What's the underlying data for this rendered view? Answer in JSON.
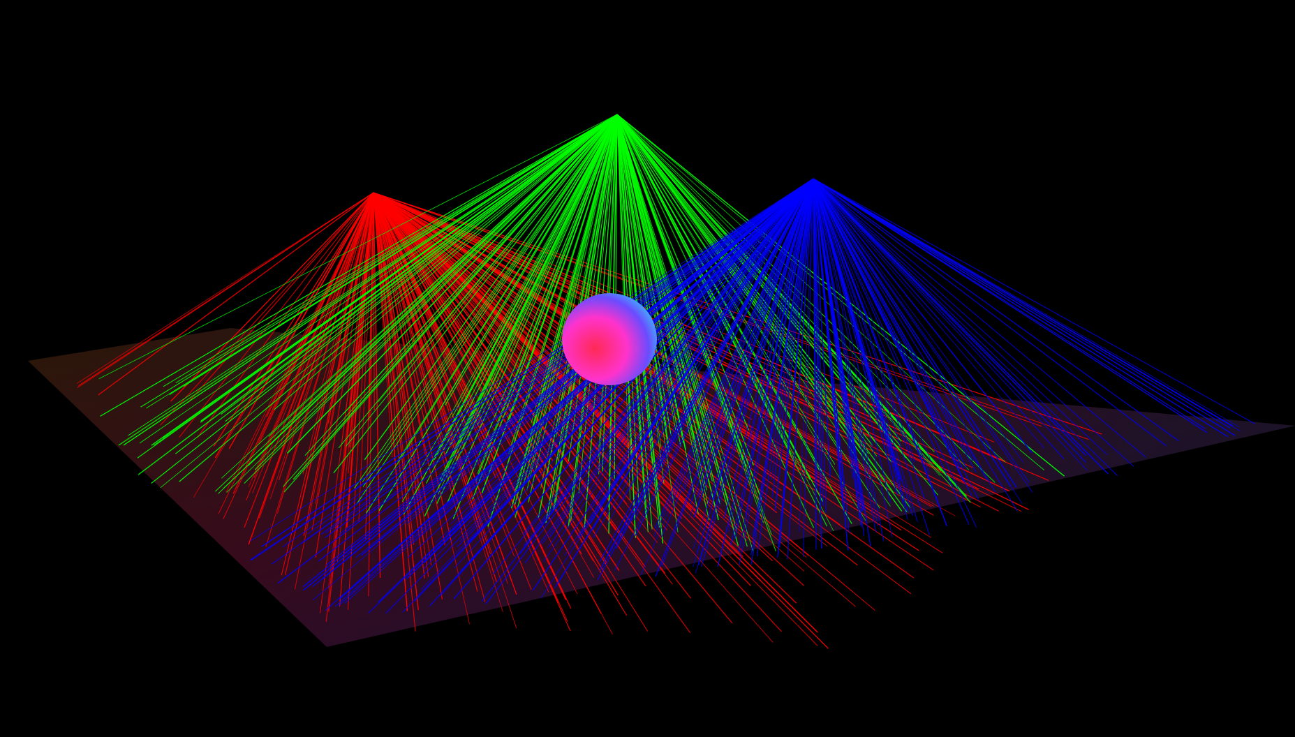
{
  "scene": {
    "background_color": "#000000",
    "ground_plane": {
      "colors": {
        "near_left": "#3a0a1a",
        "far_left": "#2a1808",
        "far_right": "#0c1a2a",
        "near_right": "#14103a"
      }
    },
    "light_sources": [
      {
        "name": "red-light-cone",
        "color": "#ff0000",
        "ray_count": 220
      },
      {
        "name": "green-light-cone",
        "color": "#00ff00",
        "ray_count": 200
      },
      {
        "name": "blue-light-cone",
        "color": "#0000ff",
        "ray_count": 220
      }
    ],
    "sphere": {
      "colors": [
        "#ff2a55",
        "#ff33cc",
        "#6a4cff",
        "#33d6ff"
      ]
    }
  }
}
